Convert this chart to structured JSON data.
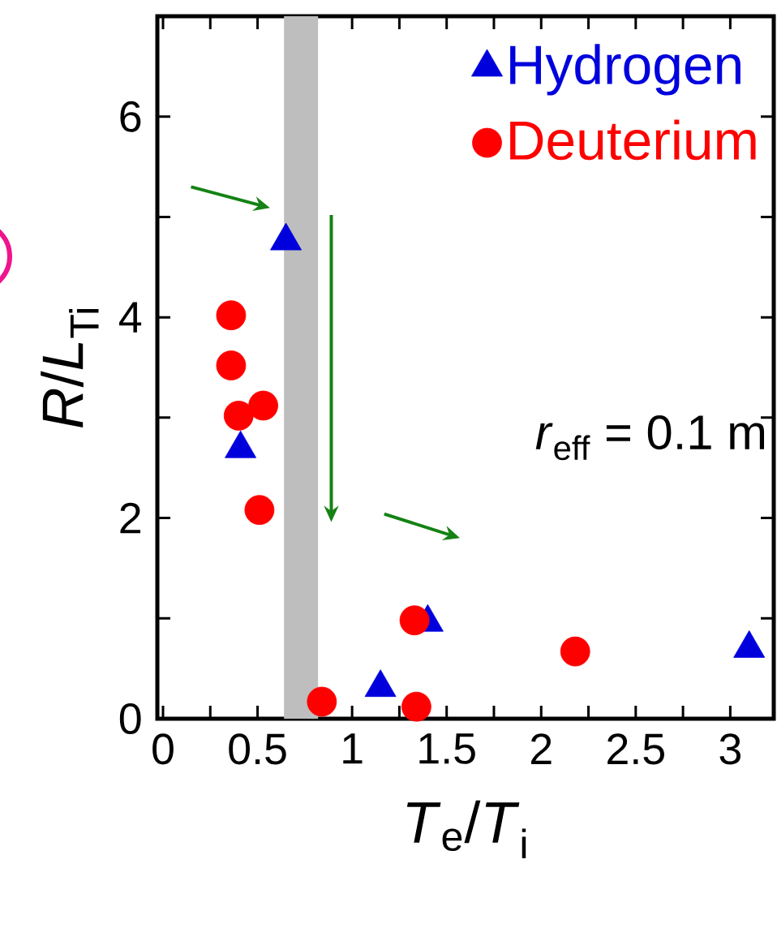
{
  "chart_data": {
    "type": "scatter",
    "xlabel": "*T*$_{e}$/*T*$_{i}$",
    "ylabel": "*R*/*L*$_{Ti}$",
    "xlim": [
      -0.03,
      3.23
    ],
    "ylim": [
      0,
      7
    ],
    "xticks": [
      0,
      0.5,
      1,
      1.5,
      2,
      2.5,
      3
    ],
    "yticks": [
      0,
      2,
      4,
      6
    ],
    "legend": "top right",
    "grid": false,
    "series": [
      {
        "name": "Hydrogen",
        "color": "#0000dd",
        "marker": "triangle",
        "x": [
          0.65,
          0.41,
          1.15,
          1.4,
          3.1
        ],
        "values": [
          4.76,
          2.69,
          0.31,
          0.96,
          0.7
        ]
      },
      {
        "name": "Deuterium",
        "color": "#ff0000",
        "marker": "circle",
        "x": [
          0.36,
          0.36,
          0.4,
          0.53,
          0.51,
          0.84,
          1.33,
          1.34,
          2.18
        ],
        "values": [
          4.02,
          3.52,
          3.02,
          3.12,
          2.08,
          0.17,
          0.98,
          0.12,
          0.67
        ]
      }
    ],
    "bands": [
      {
        "axis": "x",
        "from": 0.64,
        "to": 0.82,
        "color": "#bebebe"
      }
    ],
    "annotations": [
      "*r*$_{eff}$ = 0.1 m"
    ]
  }
}
